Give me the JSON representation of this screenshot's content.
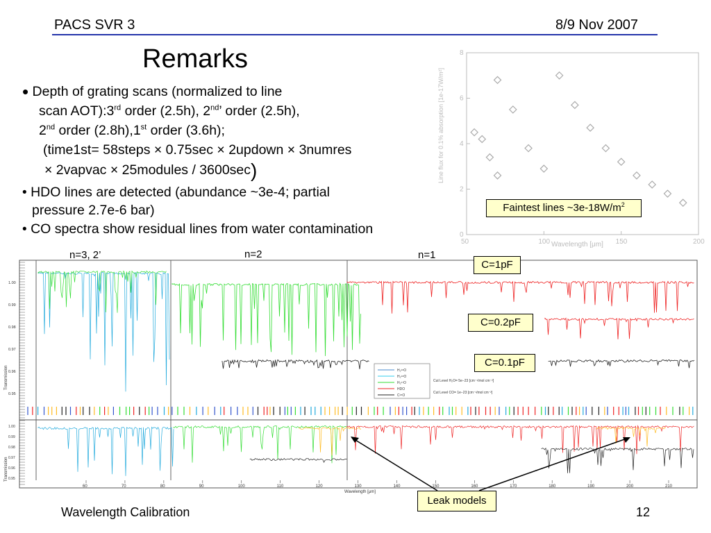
{
  "header": {
    "left": "PACS SVR 3",
    "right": "8/9 Nov 2007"
  },
  "title": "Remarks",
  "bullets": {
    "b1_l1": "Depth of grating scans (normalized to line",
    "b1_l2_a": "scan AOT):3",
    "b1_l2_sup1": "rd",
    "b1_l2_b": " order (2.5h), 2",
    "b1_l2_sup2": "nd",
    "b1_l2_c": "’ order (2.5h),",
    "b1_l3_a": "2",
    "b1_l3_sup1": "nd",
    "b1_l3_b": " order (2.8h),1",
    "b1_l3_sup2": "st",
    "b1_l3_c": " order (3.6h);",
    "b1_l4": "(time1st=  58steps × 0.75sec × 2updown × 3numres",
    "b1_l5": "× 2vapvac × 25modules / 3600sec",
    "b1_l5_paren": ")",
    "b2_l1": "HDO lines are detected (abundance ~3e-4; partial",
    "b2_l2": "pressure 2.7e-6 bar)",
    "b3": "CO spectra show residual lines from water contamination"
  },
  "top_plot": {
    "ylabel": "Line flux for 0.1% absorption [1e-17W/m²]",
    "xlabel": "Wavelength [μm]",
    "xticks": [
      "50",
      "100",
      "150",
      "200"
    ],
    "yticks": [
      "0",
      "2",
      "4",
      "6",
      "8"
    ],
    "callout_prefix": "Faintest lines ~3e-18W/m",
    "callout_sup": "2"
  },
  "chart_data": {
    "type": "scatter",
    "xlabel": "Wavelength [μm]",
    "ylabel": "Line flux for 0.1% absorption [1e-17W/m²]",
    "xlim": [
      50,
      200
    ],
    "ylim": [
      0,
      8
    ],
    "points": [
      {
        "x": 55,
        "y": 4.5
      },
      {
        "x": 60,
        "y": 4.2
      },
      {
        "x": 65,
        "y": 3.4
      },
      {
        "x": 70,
        "y": 6.8
      },
      {
        "x": 70,
        "y": 2.6
      },
      {
        "x": 80,
        "y": 5.5
      },
      {
        "x": 90,
        "y": 3.8
      },
      {
        "x": 100,
        "y": 2.9
      },
      {
        "x": 110,
        "y": 7.0
      },
      {
        "x": 120,
        "y": 5.7
      },
      {
        "x": 130,
        "y": 4.7
      },
      {
        "x": 140,
        "y": 3.8
      },
      {
        "x": 150,
        "y": 3.2
      },
      {
        "x": 160,
        "y": 2.6
      },
      {
        "x": 170,
        "y": 2.2
      },
      {
        "x": 180,
        "y": 1.8
      },
      {
        "x": 190,
        "y": 1.4
      }
    ]
  },
  "spectrum": {
    "order_labels": [
      "n=3, 2’",
      "n=2",
      "n=1"
    ],
    "ylabel": "Transmission",
    "xlabel": "Wavelength [μm]",
    "xticks": [
      "60",
      "70",
      "80",
      "90",
      "100",
      "110",
      "120",
      "130",
      "140",
      "150",
      "160",
      "170",
      "180",
      "190",
      "200",
      "210"
    ],
    "yticks_upper": [
      "1.00",
      "0.99",
      "0.98",
      "0.97",
      "0.96",
      "0.95"
    ],
    "yticks_lower": [
      "1.00",
      "0.99",
      "0.98",
      "0.97",
      "0.96",
      "0.95"
    ],
    "legend": {
      "entries": [
        {
          "label": "H₂¹⁶O",
          "color": "#4488cc"
        },
        {
          "label": "H₂¹⁸O",
          "color": "#33ccee"
        },
        {
          "label": "H₂¹⁷O",
          "color": "#33dd33"
        },
        {
          "label": "HDO",
          "color": "#ee2222"
        },
        {
          "label": "C¹⁸O",
          "color": "#222222"
        }
      ],
      "cut1": "Cut Level H₂O= 5e−23 [cm⁻¹/mol cm⁻²]",
      "cut2": "Cut Level CO= 1e−23 [cm⁻¹/mol cm⁻²]"
    },
    "callouts": [
      "C=1pF",
      "C=0.2pF",
      "C=0.1pF"
    ],
    "leak_label": "Leak models"
  },
  "footer": {
    "left": "Wavelength Calibration",
    "right": "12"
  },
  "colors": {
    "header_line": "#2233aa",
    "callout_bg": "#ffffcc",
    "cyan": "#22aadd",
    "green": "#33dd33",
    "red": "#ee2222",
    "black": "#222222",
    "orange": "#ffbb22",
    "marker": "#aaaaaa"
  }
}
